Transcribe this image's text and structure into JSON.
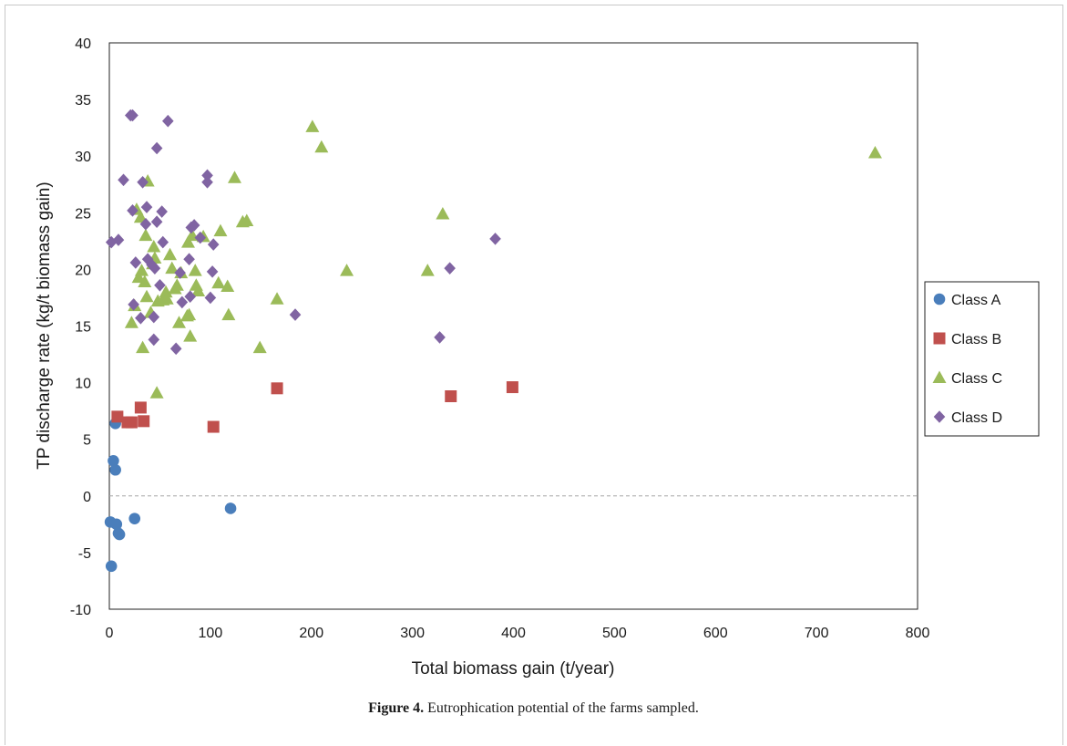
{
  "caption": {
    "label": "Figure 4.",
    "text": "Eutrophication potential of the farms sampled."
  },
  "chart_data": {
    "type": "scatter",
    "xlabel": "Total biomass gain (t/year)",
    "ylabel": "TP discharge rate (kg/t biomass gain)",
    "xlim": [
      0,
      800
    ],
    "ylim": [
      -10,
      40
    ],
    "xticks": [
      0,
      100,
      200,
      300,
      400,
      500,
      600,
      700,
      800
    ],
    "yticks": [
      -10,
      -5,
      0,
      5,
      10,
      15,
      20,
      25,
      30,
      35,
      40
    ],
    "reference_line": {
      "y": 0,
      "style": "dashed"
    },
    "grid": false,
    "legend_position": "right",
    "series": [
      {
        "name": "Class A",
        "marker": "circle",
        "color": "#4a7ebb",
        "points": [
          [
            6,
            6.4
          ],
          [
            4,
            3.1
          ],
          [
            6,
            2.3
          ],
          [
            1,
            -2.3
          ],
          [
            7,
            -2.5
          ],
          [
            9,
            -3.3
          ],
          [
            10,
            -3.4
          ],
          [
            25,
            -2.0
          ],
          [
            2,
            -6.2
          ],
          [
            120,
            -1.1
          ]
        ]
      },
      {
        "name": "Class B",
        "marker": "square",
        "color": "#c0504d",
        "points": [
          [
            8,
            7.0
          ],
          [
            18,
            6.5
          ],
          [
            22,
            6.5
          ],
          [
            31,
            7.8
          ],
          [
            34,
            6.6
          ],
          [
            103,
            6.1
          ],
          [
            166,
            9.5
          ],
          [
            338,
            8.8
          ],
          [
            399,
            9.6
          ]
        ]
      },
      {
        "name": "Class C",
        "marker": "triangle",
        "color": "#9bbb59",
        "points": [
          [
            22,
            15.3
          ],
          [
            25,
            16.8
          ],
          [
            27,
            25.3
          ],
          [
            29,
            19.3
          ],
          [
            31,
            24.6
          ],
          [
            32,
            19.9
          ],
          [
            33,
            13.1
          ],
          [
            35,
            18.9
          ],
          [
            36,
            23.0
          ],
          [
            37,
            17.6
          ],
          [
            38,
            27.8
          ],
          [
            41,
            16.2
          ],
          [
            43,
            20.5
          ],
          [
            44,
            22.0
          ],
          [
            45,
            21.0
          ],
          [
            47,
            9.1
          ],
          [
            48,
            17.2
          ],
          [
            53,
            17.3
          ],
          [
            56,
            18.0
          ],
          [
            57,
            17.4
          ],
          [
            60,
            21.3
          ],
          [
            62,
            20.1
          ],
          [
            65,
            18.3
          ],
          [
            67,
            18.6
          ],
          [
            69,
            15.3
          ],
          [
            71,
            19.7
          ],
          [
            77,
            15.9
          ],
          [
            78,
            22.4
          ],
          [
            79,
            16.0
          ],
          [
            80,
            14.1
          ],
          [
            82,
            23.0
          ],
          [
            85,
            19.9
          ],
          [
            86,
            18.6
          ],
          [
            88,
            18.1
          ],
          [
            93,
            22.9
          ],
          [
            108,
            18.8
          ],
          [
            110,
            23.4
          ],
          [
            117,
            18.5
          ],
          [
            118,
            16.0
          ],
          [
            124,
            28.1
          ],
          [
            132,
            24.2
          ],
          [
            136,
            24.3
          ],
          [
            149,
            13.1
          ],
          [
            166,
            17.4
          ],
          [
            201,
            32.6
          ],
          [
            210,
            30.8
          ],
          [
            235,
            19.9
          ],
          [
            315,
            19.9
          ],
          [
            330,
            24.9
          ],
          [
            758,
            30.3
          ]
        ]
      },
      {
        "name": "Class D",
        "marker": "diamond",
        "color": "#8064a2",
        "points": [
          [
            2,
            22.4
          ],
          [
            9,
            22.6
          ],
          [
            14,
            27.9
          ],
          [
            21,
            33.6
          ],
          [
            23,
            33.6
          ],
          [
            23,
            25.2
          ],
          [
            24,
            16.9
          ],
          [
            26,
            20.6
          ],
          [
            31,
            15.7
          ],
          [
            33,
            27.7
          ],
          [
            36,
            24.0
          ],
          [
            37,
            25.5
          ],
          [
            38,
            20.9
          ],
          [
            42,
            20.4
          ],
          [
            44,
            15.8
          ],
          [
            44,
            13.8
          ],
          [
            45,
            20.1
          ],
          [
            47,
            30.7
          ],
          [
            47,
            24.2
          ],
          [
            50,
            18.6
          ],
          [
            52,
            25.1
          ],
          [
            53,
            22.4
          ],
          [
            58,
            33.1
          ],
          [
            66,
            13.0
          ],
          [
            70,
            19.7
          ],
          [
            72,
            17.1
          ],
          [
            79,
            20.9
          ],
          [
            80,
            17.6
          ],
          [
            81,
            23.7
          ],
          [
            84,
            23.9
          ],
          [
            90,
            22.8
          ],
          [
            97,
            28.3
          ],
          [
            97,
            27.7
          ],
          [
            100,
            17.5
          ],
          [
            102,
            19.8
          ],
          [
            103,
            22.2
          ],
          [
            184,
            16.0
          ],
          [
            327,
            14.0
          ],
          [
            337,
            20.1
          ],
          [
            382,
            22.7
          ]
        ]
      }
    ]
  }
}
